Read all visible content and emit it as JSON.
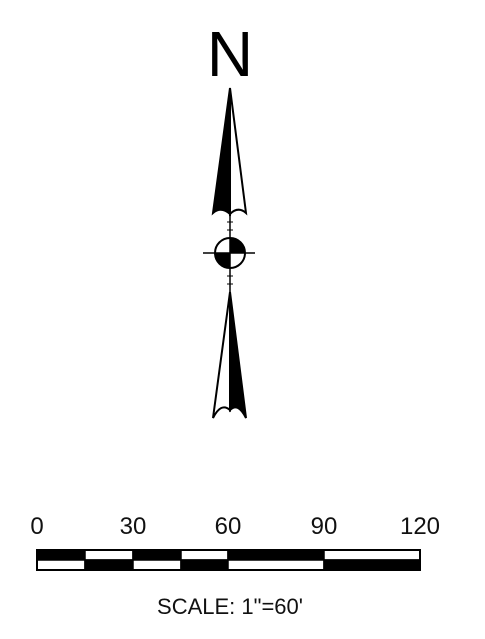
{
  "north_arrow": {
    "letter": "N",
    "icon": "north-arrow-icon"
  },
  "scale_bar": {
    "ticks": [
      "0",
      "30",
      "60",
      "90",
      "120"
    ],
    "caption": "SCALE: 1\"=60'"
  },
  "colors": {
    "ink": "#000000",
    "paper": "#ffffff"
  }
}
